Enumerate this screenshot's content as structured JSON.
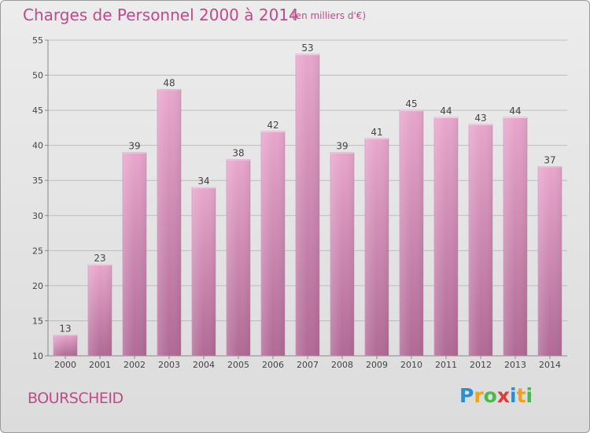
{
  "title": "Charges de Personnel 2000 à 2014",
  "subtitle": "(en milliers d'€)",
  "commune": "BOURSCHEID",
  "logo": {
    "text": "Proxiti",
    "letters": [
      {
        "ch": "P",
        "color": "#2a8fd0"
      },
      {
        "ch": "r",
        "color": "#f0a21c"
      },
      {
        "ch": "o",
        "color": "#4bb84a"
      },
      {
        "ch": "x",
        "color": "#e23a3a"
      },
      {
        "ch": "i",
        "color": "#2a8fd0"
      },
      {
        "ch": "t",
        "color": "#f0a21c"
      },
      {
        "ch": "i",
        "color": "#4bb84a"
      }
    ]
  },
  "colors": {
    "bar_top": "#e8a6cc",
    "bar_bottom": "#b06a95",
    "text_accent": "#c04a8a",
    "grid": "#bdbdbd",
    "axis_text": "#444444"
  },
  "chart_data": {
    "type": "bar",
    "categories": [
      "2000",
      "2001",
      "2002",
      "2003",
      "2004",
      "2005",
      "2006",
      "2007",
      "2008",
      "2009",
      "2010",
      "2011",
      "2012",
      "2013",
      "2014"
    ],
    "values": [
      13,
      23,
      39,
      48,
      34,
      38,
      42,
      53,
      39,
      41,
      45,
      44,
      43,
      44,
      37
    ],
    "title": "Charges de Personnel 2000 à 2014",
    "subtitle": "(en milliers d'€)",
    "ylim": [
      10,
      55
    ],
    "yticks": [
      10,
      15,
      20,
      25,
      30,
      35,
      40,
      45,
      50,
      55
    ],
    "grid": true,
    "legend": "none"
  }
}
